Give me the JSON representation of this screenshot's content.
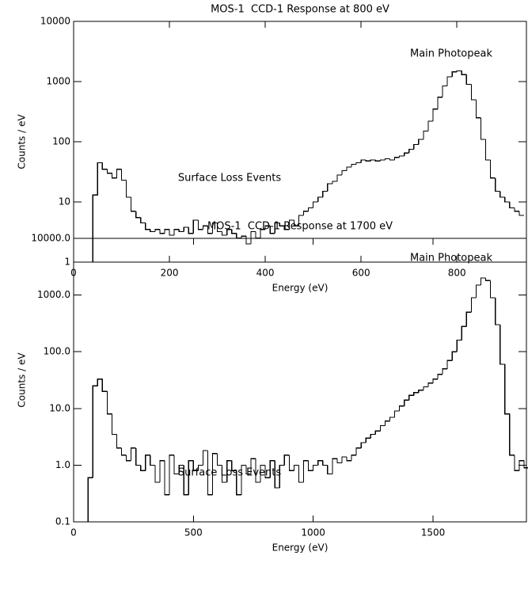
{
  "chart_data": [
    {
      "type": "histogram",
      "title": "MOS-1  CCD-1 Response at 800 eV",
      "x_label": "Energy (eV)",
      "y_label": "Counts / eV",
      "y_scale": "log",
      "color": "#000000",
      "annotations": [
        "Main Photopeak",
        "Surface Loss Events"
      ],
      "xlim": [
        0,
        945
      ],
      "xticks": [
        0,
        200,
        400,
        600,
        800
      ],
      "ylim": [
        1,
        10000
      ],
      "yticks": [
        1,
        10,
        100,
        1000,
        10000
      ],
      "bins": [
        40,
        50,
        60,
        70,
        80,
        90,
        100,
        110,
        120,
        130,
        140,
        150,
        160,
        170,
        180,
        190,
        200,
        210,
        220,
        230,
        240,
        250,
        260,
        270,
        280,
        290,
        300,
        310,
        320,
        330,
        340,
        350,
        360,
        370,
        380,
        390,
        400,
        410,
        420,
        430,
        440,
        450,
        460,
        470,
        480,
        490,
        500,
        510,
        520,
        530,
        540,
        550,
        560,
        570,
        580,
        590,
        600,
        610,
        620,
        630,
        640,
        650,
        660,
        670,
        680,
        690,
        700,
        710,
        720,
        730,
        740,
        750,
        760,
        770,
        780,
        790,
        800,
        810,
        820,
        830,
        840,
        850,
        860,
        870,
        880,
        890,
        900,
        910,
        920,
        930,
        940
      ],
      "values": [
        13,
        45,
        35,
        30,
        25,
        35,
        23,
        12,
        7,
        5.5,
        4.5,
        3.5,
        3.2,
        3.5,
        3.0,
        3.5,
        2.8,
        3.5,
        3.2,
        3.8,
        3.0,
        5.0,
        3.5,
        4.0,
        3.0,
        4.5,
        3.2,
        2.8,
        3.5,
        3.0,
        2.5,
        2.7,
        2.0,
        3.2,
        2.5,
        3.5,
        4.0,
        3.0,
        4.5,
        4.0,
        3.5,
        5.0,
        4.0,
        6,
        7,
        8,
        10,
        12,
        15,
        20,
        22,
        28,
        33,
        38,
        42,
        45,
        50,
        48,
        50,
        48,
        50,
        52,
        50,
        55,
        58,
        65,
        75,
        90,
        110,
        150,
        220,
        350,
        550,
        850,
        1200,
        1450,
        1500,
        1300,
        900,
        500,
        250,
        110,
        50,
        25,
        15,
        12,
        10,
        8,
        7,
        6
      ]
    },
    {
      "type": "histogram",
      "title": "MOS-1  CCD-1 Response at 1700 eV",
      "x_label": "Energy (eV)",
      "y_label": "Counts / eV",
      "y_scale": "log",
      "color": "#000000",
      "annotations": [
        "Main Photopeak",
        "Surface Loss Events"
      ],
      "xlim": [
        0,
        1890
      ],
      "xticks": [
        0,
        500,
        1000,
        1500
      ],
      "ylim": [
        0.1,
        10000
      ],
      "yticks": [
        {
          "value": 0.1,
          "label": "0.1"
        },
        {
          "value": 1,
          "label": "1.0"
        },
        {
          "value": 10,
          "label": "10.0"
        },
        {
          "value": 100,
          "label": "100.0"
        },
        {
          "value": 1000,
          "label": "1000.0"
        },
        {
          "value": 10000,
          "label": "10000.0"
        }
      ],
      "bins": [
        60,
        80,
        100,
        120,
        140,
        160,
        180,
        200,
        220,
        240,
        260,
        280,
        300,
        320,
        340,
        360,
        380,
        400,
        420,
        440,
        460,
        480,
        500,
        520,
        540,
        560,
        580,
        600,
        620,
        640,
        660,
        680,
        700,
        720,
        740,
        760,
        780,
        800,
        820,
        840,
        860,
        880,
        900,
        920,
        940,
        960,
        980,
        1000,
        1020,
        1040,
        1060,
        1080,
        1100,
        1120,
        1140,
        1160,
        1180,
        1200,
        1220,
        1240,
        1260,
        1280,
        1300,
        1320,
        1340,
        1360,
        1380,
        1400,
        1420,
        1440,
        1460,
        1480,
        1500,
        1520,
        1540,
        1560,
        1580,
        1600,
        1620,
        1640,
        1660,
        1680,
        1700,
        1720,
        1740,
        1760,
        1780,
        1800,
        1820,
        1840,
        1860,
        1880,
        1900
      ],
      "values": [
        0.6,
        25,
        33,
        20,
        8,
        3.5,
        2.0,
        1.5,
        1.2,
        2.0,
        1.0,
        0.8,
        1.5,
        1.0,
        0.5,
        1.2,
        0.3,
        1.5,
        0.7,
        1.0,
        0.3,
        1.2,
        0.8,
        1.0,
        1.8,
        0.3,
        1.6,
        1.0,
        0.5,
        1.2,
        0.8,
        0.3,
        1.0,
        0.7,
        1.3,
        0.5,
        1.0,
        0.6,
        1.2,
        0.4,
        1.0,
        1.5,
        0.8,
        1.0,
        0.5,
        1.2,
        0.8,
        1.0,
        1.2,
        1.0,
        0.7,
        1.3,
        1.1,
        1.4,
        1.2,
        1.5,
        2.0,
        2.5,
        3.0,
        3.5,
        4.0,
        5.0,
        6,
        7,
        9,
        11,
        14,
        17,
        19,
        21,
        24,
        28,
        33,
        40,
        50,
        70,
        100,
        160,
        280,
        500,
        900,
        1500,
        2000,
        1800,
        900,
        300,
        60,
        8,
        1.5,
        0.8,
        1.2,
        0.9
      ]
    }
  ]
}
